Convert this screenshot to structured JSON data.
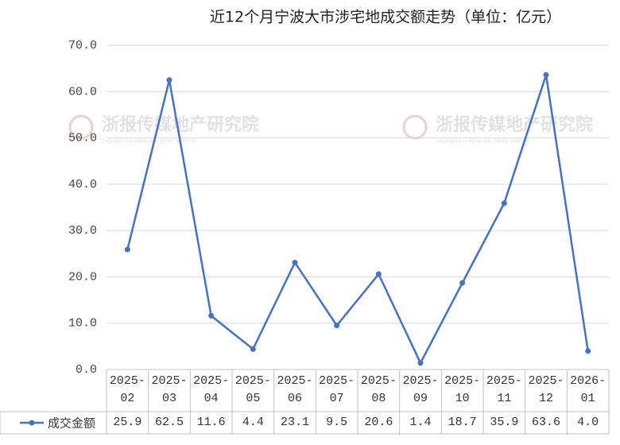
{
  "chart_data": {
    "type": "line",
    "title": "近12个月宁波大市涉宅地成交额走势（单位：亿元）",
    "watermark": "浙报传媒地产研究院",
    "watermark_subtitle": "ZHEJIANG DAILY MEDIA REAL ESTATE INSTITUTE",
    "categories": [
      "2025-02",
      "2025-03",
      "2025-04",
      "2025-05",
      "2025-06",
      "2025-07",
      "2025-08",
      "2025-09",
      "2025-10",
      "2025-11",
      "2025-12",
      "2026-01"
    ],
    "series": [
      {
        "name": "成交金额",
        "color": "#4472c4",
        "values": [
          25.9,
          62.5,
          11.6,
          4.4,
          23.1,
          9.5,
          20.6,
          1.4,
          18.7,
          35.9,
          63.6,
          4.0
        ],
        "value_labels": [
          "25.9",
          "62.5",
          "11.6",
          "4.4",
          "23.1",
          "9.5",
          "20.6",
          "1.4",
          "18.7",
          "35.9",
          "63.6",
          "4.0"
        ]
      }
    ],
    "ylim": [
      0,
      70
    ],
    "yticks": [
      {
        "value": 0,
        "label": "0.0"
      },
      {
        "value": 10,
        "label": "10.0"
      },
      {
        "value": 20,
        "label": "20.0"
      },
      {
        "value": 30,
        "label": "30.0"
      },
      {
        "value": 40,
        "label": "40.0"
      },
      {
        "value": 50,
        "label": "50.0"
      },
      {
        "value": 60,
        "label": "60.0"
      },
      {
        "value": 70,
        "label": "70.0"
      }
    ],
    "grid": true
  }
}
